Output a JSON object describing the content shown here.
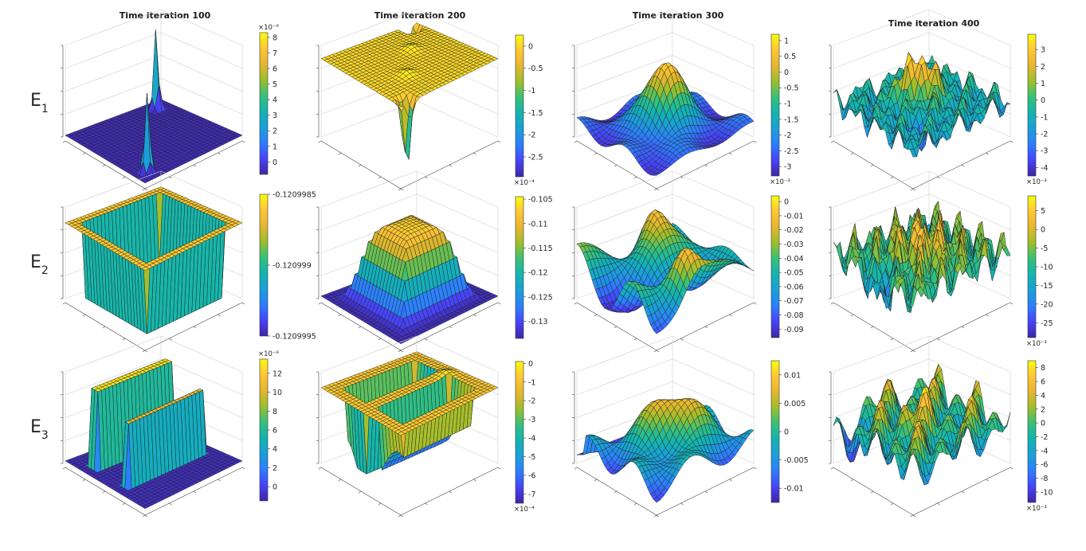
{
  "chart_data": {
    "type": "surface",
    "layout": "3 rows x 4 columns of 3D surface plots with individual colorbars",
    "column_titles": [
      "Time iteration 100",
      "Time iteration 200",
      "Time iteration 300",
      "Time iteration 400"
    ],
    "row_labels": [
      {
        "base": "E",
        "subscript": "1"
      },
      {
        "base": "E",
        "subscript": "2"
      },
      {
        "base": "E",
        "subscript": "3"
      }
    ],
    "colormap": [
      "#3e26a8",
      "#4743f9",
      "#2d7eff",
      "#1a9fd8",
      "#12b4b2",
      "#35c07a",
      "#9cbf2a",
      "#e5b62f",
      "#fec634",
      "#f9fb0e"
    ],
    "panels": [
      {
        "row": 1,
        "col": 1,
        "shape": "twin_spikes",
        "multiplier": "×10⁻⁹",
        "exp_pos": "top",
        "colorbar": {
          "ticks": [
            "8",
            "7",
            "6",
            "5",
            "4",
            "3",
            "2",
            "1",
            "0"
          ],
          "range": [
            -8e-10,
            8.3e-09
          ]
        }
      },
      {
        "row": 1,
        "col": 2,
        "shape": "corner_dips",
        "multiplier": "×10⁻⁴",
        "exp_pos": "bottom",
        "colorbar": {
          "ticks": [
            "0",
            "-0.5",
            "-1",
            "-1.5",
            "-2",
            "-2.5"
          ],
          "range": [
            -0.000295,
            2.5e-05
          ]
        }
      },
      {
        "row": 1,
        "col": 3,
        "shape": "central_dome",
        "multiplier": "×10⁻³",
        "exp_pos": "bottom",
        "colorbar": {
          "ticks": [
            "1",
            "0.5",
            "0",
            "-0.5",
            "-1",
            "-1.5",
            "-2",
            "-2.5",
            "-3"
          ],
          "range": [
            -0.0033,
            0.0012
          ]
        }
      },
      {
        "row": 1,
        "col": 4,
        "shape": "rough_peaks",
        "multiplier": "×10⁻³",
        "exp_pos": "bottom",
        "colorbar": {
          "ticks": [
            "3",
            "2",
            "1",
            "0",
            "-1",
            "-2",
            "-3",
            "-4"
          ],
          "range": [
            -0.0045,
            0.0039
          ]
        }
      },
      {
        "row": 2,
        "col": 1,
        "shape": "square_well",
        "multiplier": "",
        "exp_pos": "none",
        "colorbar": {
          "ticks": [
            "-0.1209985",
            "-0.120999",
            "-0.1209995"
          ],
          "range": [
            -0.1209995,
            -0.1209985
          ]
        }
      },
      {
        "row": 2,
        "col": 2,
        "shape": "plateau",
        "multiplier": "",
        "exp_pos": "none",
        "colorbar": {
          "ticks": [
            "-0.105",
            "-0.11",
            "-0.115",
            "-0.12",
            "-0.125",
            "-0.13"
          ],
          "range": [
            -0.1335,
            -0.1045
          ]
        }
      },
      {
        "row": 2,
        "col": 3,
        "shape": "double_ridge",
        "multiplier": "",
        "exp_pos": "none",
        "colorbar": {
          "ticks": [
            "0",
            "-0.01",
            "-0.02",
            "-0.03",
            "-0.04",
            "-0.05",
            "-0.06",
            "-0.07",
            "-0.08",
            "-0.09"
          ],
          "range": [
            -0.096,
            0.004
          ]
        }
      },
      {
        "row": 2,
        "col": 4,
        "shape": "jagged_peaks",
        "multiplier": "×10⁻³",
        "exp_pos": "bottom",
        "colorbar": {
          "ticks": [
            "5",
            "0",
            "-5",
            "-10",
            "-15",
            "-20",
            "-25"
          ],
          "range": [
            -0.029,
            0.009
          ]
        }
      },
      {
        "row": 3,
        "col": 1,
        "shape": "twin_walls",
        "multiplier": "×10⁻⁹",
        "exp_pos": "top",
        "colorbar": {
          "ticks": [
            "12",
            "10",
            "8",
            "6",
            "4",
            "2",
            "0"
          ],
          "range": [
            -1.5e-09,
            1.35e-08
          ]
        }
      },
      {
        "row": 3,
        "col": 2,
        "shape": "twin_trenches",
        "multiplier": "×10⁻⁴",
        "exp_pos": "bottom",
        "colorbar": {
          "ticks": [
            "0",
            "-1",
            "-2",
            "-3",
            "-4",
            "-5",
            "-6",
            "-7"
          ],
          "range": [
            -0.00075,
            1e-05
          ]
        }
      },
      {
        "row": 3,
        "col": 3,
        "shape": "wave_ridge",
        "multiplier": "",
        "exp_pos": "none",
        "colorbar": {
          "ticks": [
            "0.01",
            "0.005",
            "0",
            "-0.005",
            "-0.01"
          ],
          "range": [
            -0.0125,
            0.0125
          ]
        }
      },
      {
        "row": 3,
        "col": 4,
        "shape": "rolling_hills",
        "multiplier": "×10⁻³",
        "exp_pos": "bottom",
        "colorbar": {
          "ticks": [
            "8",
            "6",
            "4",
            "2",
            "0",
            "-2",
            "-4",
            "-6",
            "-8",
            "-10"
          ],
          "range": [
            -0.0115,
            0.009
          ]
        }
      }
    ]
  }
}
